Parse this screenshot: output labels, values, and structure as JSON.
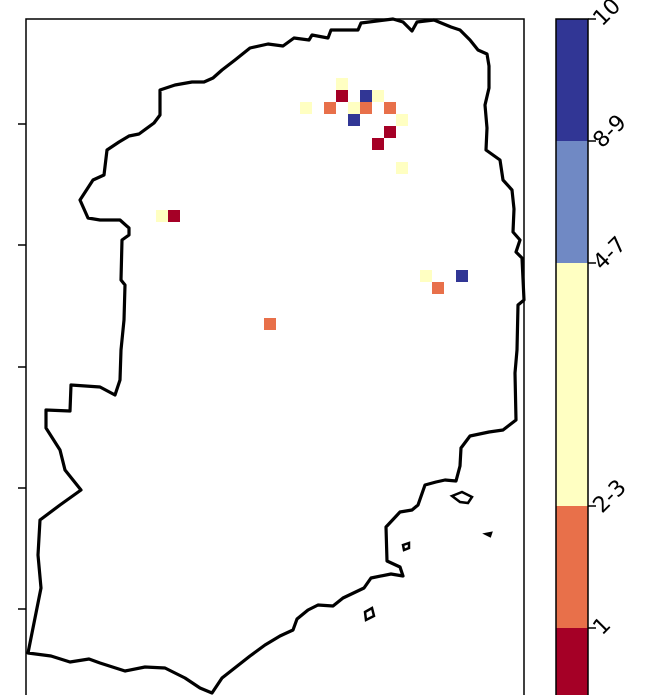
{
  "colorbar": {
    "categories": [
      {
        "label": "1",
        "color": "#a50026"
      },
      {
        "label": "2-3",
        "color": "#e8704a"
      },
      {
        "label": "4-7",
        "color": "#ffffc2"
      },
      {
        "label": "8-9",
        "color": "#7089c4"
      },
      {
        "label": "10",
        "color": "#313695"
      }
    ]
  },
  "map": {
    "outline_color": "#000000",
    "cells": [
      {
        "category": "4-7"
      },
      {
        "category": "1"
      },
      {
        "category": "10"
      },
      {
        "category": "4-7"
      },
      {
        "category": "2-3"
      },
      {
        "category": "2-3"
      },
      {
        "category": "4-7"
      },
      {
        "category": "2-3"
      },
      {
        "category": "10"
      },
      {
        "category": "4-7"
      },
      {
        "category": "1"
      },
      {
        "category": "1"
      },
      {
        "category": "4-7"
      },
      {
        "category": "4-7"
      },
      {
        "category": "1"
      },
      {
        "category": "4-7"
      },
      {
        "category": "10"
      },
      {
        "category": "2-3"
      },
      {
        "category": "2-3"
      },
      {
        "category": "4-7"
      }
    ]
  }
}
